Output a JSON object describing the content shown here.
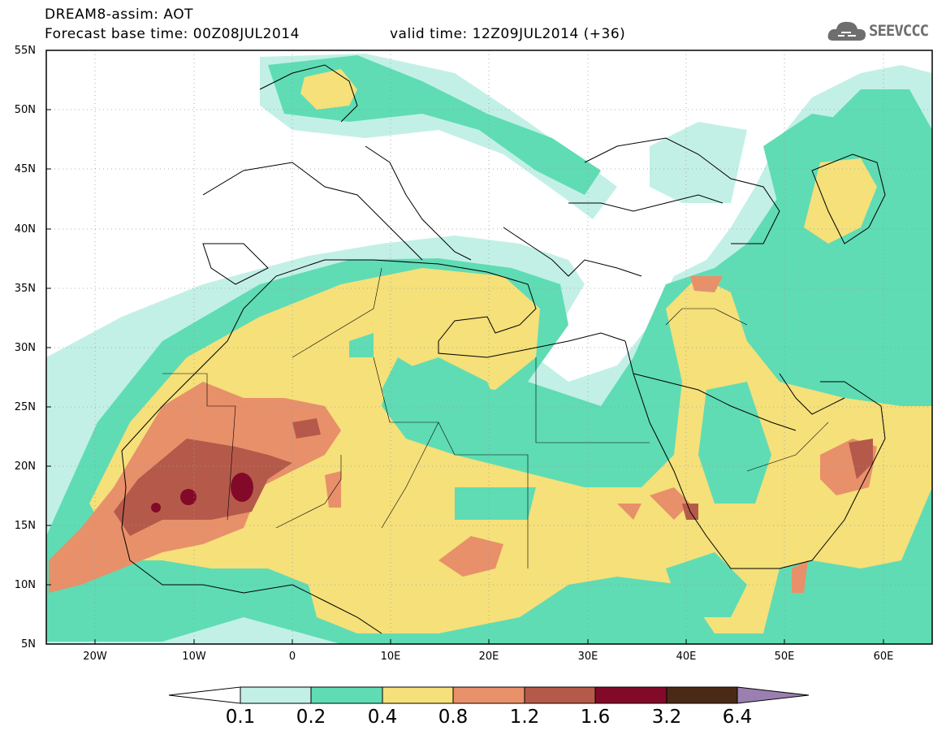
{
  "header": {
    "title": "DREAM8-assim: AOT",
    "base_time": "Forecast base time: 00Z08JUL2014",
    "valid_time": "valid time: 12Z09JUL2014 (+36)",
    "logo_text": "SEEVCCC"
  },
  "map": {
    "projection": "lat-lon",
    "lon_range": [
      -25,
      65
    ],
    "lat_range": [
      5,
      55
    ],
    "lat_ticks": [
      "5N",
      "10N",
      "15N",
      "20N",
      "25N",
      "30N",
      "35N",
      "40N",
      "45N",
      "50N",
      "55N"
    ],
    "lon_ticks": [
      "20W",
      "10W",
      "0",
      "10E",
      "20E",
      "30E",
      "40E",
      "50E",
      "60E"
    ],
    "variable": "AOT"
  },
  "colorbar": {
    "levels": [
      "0.1",
      "0.2",
      "0.4",
      "0.8",
      "1.2",
      "1.6",
      "3.2",
      "6.4"
    ],
    "colors": [
      "#ffffff",
      "#c2f0e6",
      "#5fdcb4",
      "#f5e07a",
      "#e8906a",
      "#b55a4a",
      "#820a28",
      "#4a2a16",
      "#9b7fb0"
    ]
  }
}
